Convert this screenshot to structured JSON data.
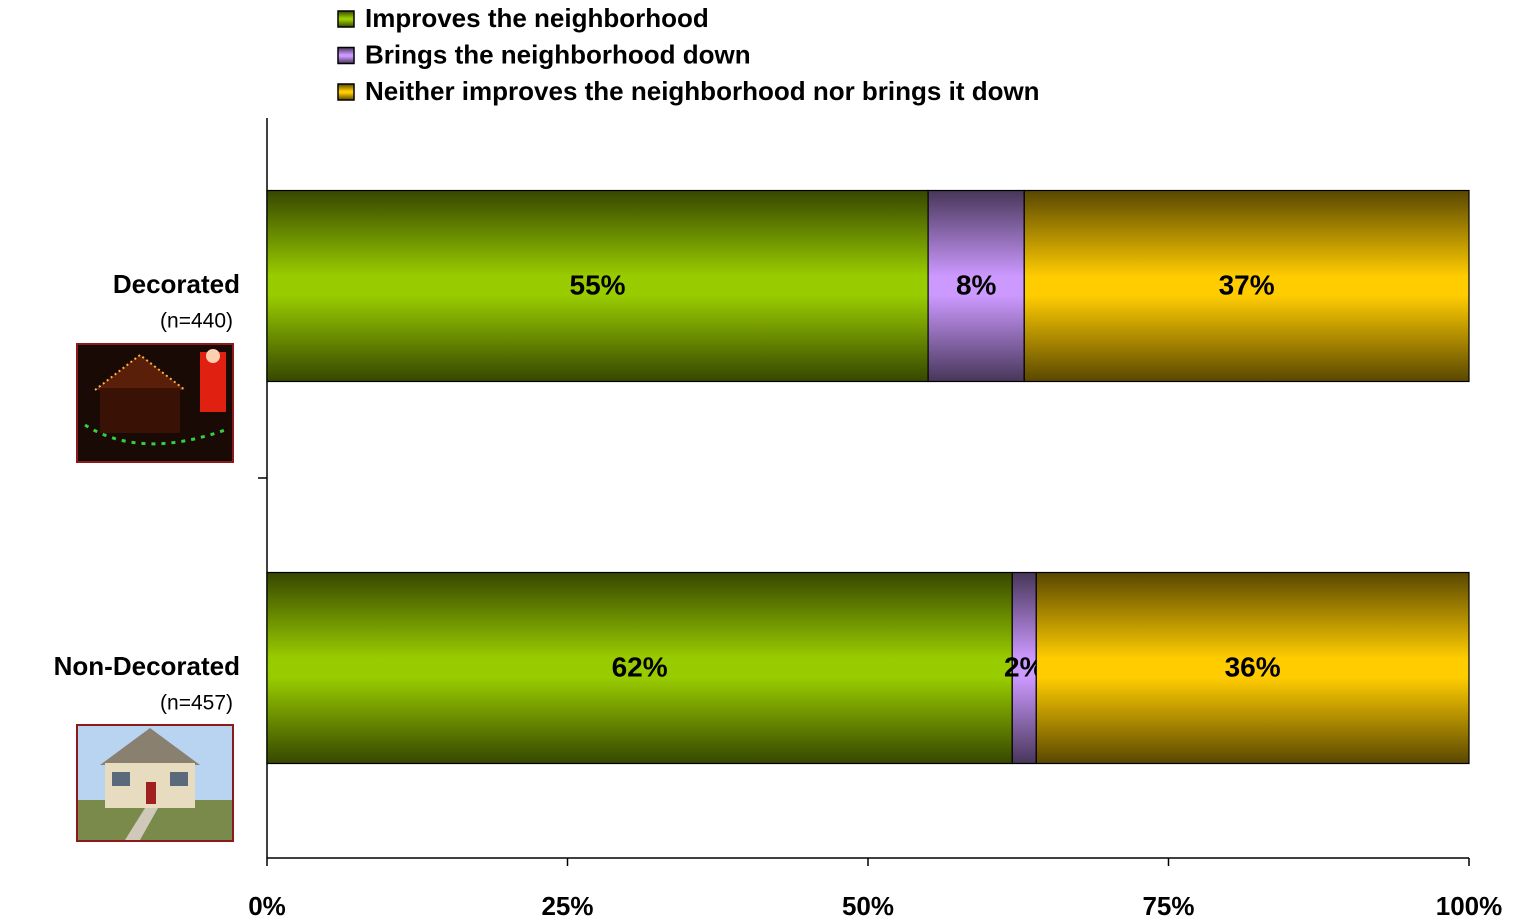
{
  "chart_data": {
    "type": "stacked-bar-horizontal",
    "categories": [
      "Decorated",
      "Non-Decorated"
    ],
    "sample_sizes": [
      "(n=440)",
      "(n=457)"
    ],
    "series": [
      {
        "name": "Improves the neighborhood",
        "color": "#99cc00",
        "values": [
          55,
          62
        ],
        "value_labels": [
          "55%",
          "62%"
        ]
      },
      {
        "name": "Brings the neighborhood down",
        "color": "#cc99ff",
        "values": [
          8,
          2
        ],
        "value_labels": [
          "8%",
          "2%"
        ]
      },
      {
        "name": "Neither improves the neighborhood nor brings it down",
        "color": "#ffcc00",
        "values": [
          37,
          36
        ],
        "value_labels": [
          "37%",
          "36%"
        ]
      }
    ],
    "xlim": [
      0,
      100
    ],
    "xticks": [
      {
        "value": 0,
        "label": "0%"
      },
      {
        "value": 25,
        "label": "25%"
      },
      {
        "value": 50,
        "label": "50%"
      },
      {
        "value": 75,
        "label": "75%"
      },
      {
        "value": 100,
        "label": "100%"
      }
    ],
    "legend": "top"
  }
}
